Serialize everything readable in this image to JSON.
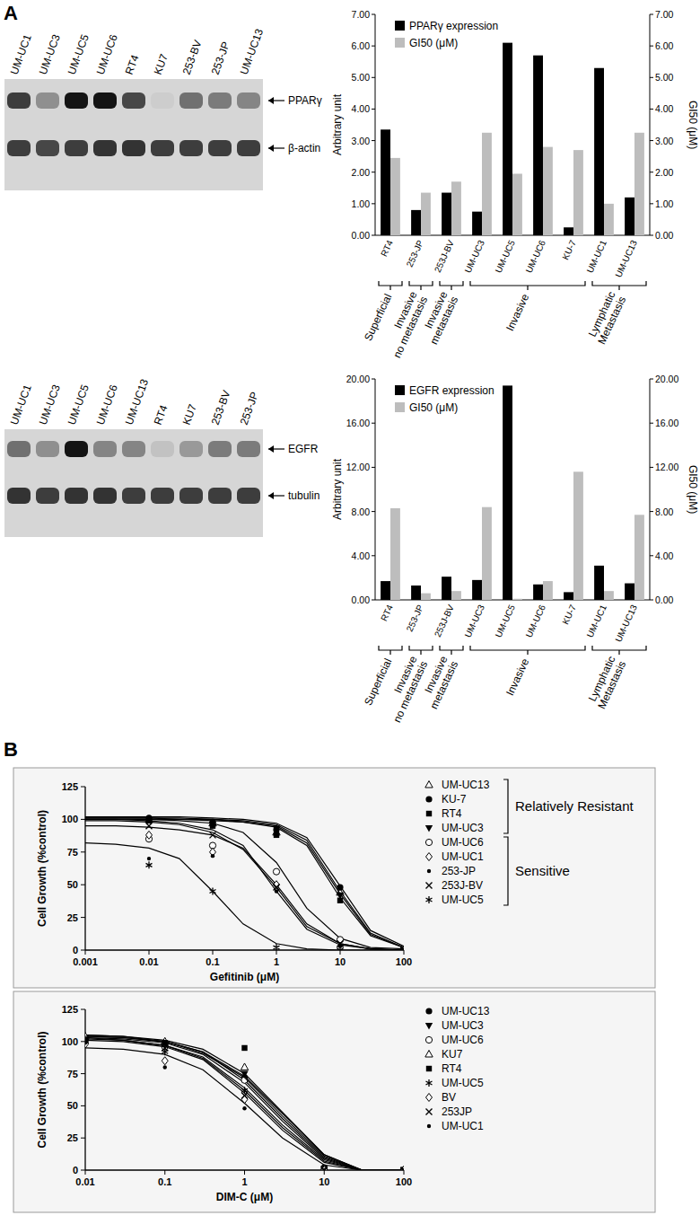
{
  "panel_labels": [
    "A",
    "B"
  ],
  "blots": [
    {
      "lanes": [
        "UM-UC1",
        "UM-UC3",
        "UM-UC5",
        "UM-UC6",
        "RT4",
        "KU7",
        "253-BV",
        "253-JP",
        "UM-UC13"
      ],
      "bands": [
        {
          "label": "PPARγ",
          "intensity": [
            0.8,
            0.4,
            1,
            1,
            0.75,
            0.1,
            0.55,
            0.5,
            0.45
          ]
        },
        {
          "label": "β-actin",
          "intensity": [
            0.8,
            0.75,
            0.8,
            0.85,
            0.85,
            0.8,
            0.8,
            0.8,
            0.8
          ]
        }
      ]
    },
    {
      "lanes": [
        "UM-UC1",
        "UM-UC3",
        "UM-UC5",
        "UM-UC6",
        "UM-UC13",
        "RT4",
        "KU7",
        "253-BV",
        "253-JP"
      ],
      "bands": [
        {
          "label": "EGFR",
          "intensity": [
            0.55,
            0.4,
            1,
            0.45,
            0.45,
            0.15,
            0.35,
            0.5,
            0.5
          ]
        },
        {
          "label": "tubulin",
          "intensity": [
            0.85,
            0.8,
            0.85,
            0.85,
            0.8,
            0.8,
            0.8,
            0.8,
            0.8
          ]
        }
      ]
    }
  ],
  "chart_data": [
    {
      "type": "bar",
      "categories": [
        "RT4",
        "253-JP",
        "253J-BV",
        "UM-UC3",
        "UM-UC5",
        "UM-UC6",
        "KU-7",
        "UM-UC1",
        "UM-UC13"
      ],
      "series": [
        {
          "name": "PPARγ expression",
          "color": "#000000",
          "values": [
            3.35,
            0.8,
            1.35,
            0.75,
            6.1,
            5.7,
            0.25,
            5.3,
            1.2
          ]
        },
        {
          "name": "GI50 (μM)",
          "color": "#bdbdbd",
          "axis": "y2",
          "values": [
            2.45,
            1.35,
            1.7,
            3.25,
            1.95,
            2.8,
            2.7,
            1.0,
            3.25
          ]
        }
      ],
      "ylim": [
        0,
        7
      ],
      "yticks": [
        {
          "value": 0,
          "label": "0.00"
        },
        {
          "value": 1,
          "label": "1.00"
        },
        {
          "value": 2,
          "label": "2.00"
        },
        {
          "value": 3,
          "label": "3.00"
        },
        {
          "value": 4,
          "label": "4.00"
        },
        {
          "value": 5,
          "label": "5.00"
        },
        {
          "value": 6,
          "label": "6.00"
        },
        {
          "value": 7,
          "label": "7.00"
        }
      ],
      "y2lim": [
        0,
        7
      ],
      "y2ticks": [
        {
          "value": 0,
          "label": "0.00"
        },
        {
          "value": 1,
          "label": "1.00"
        },
        {
          "value": 2,
          "label": "2.00"
        },
        {
          "value": 3,
          "label": "3.00"
        },
        {
          "value": 4,
          "label": "4.00"
        },
        {
          "value": 5,
          "label": "5.00"
        },
        {
          "value": 6,
          "label": "6.00"
        },
        {
          "value": 7,
          "label": "7.00"
        }
      ],
      "y_label": "Arbitrary unit",
      "y2_label": "GI50 (μM)",
      "legend": "top-left",
      "groups": [
        {
          "label": [
            "Superficial"
          ],
          "categories": [
            "RT4"
          ]
        },
        {
          "label": [
            "Invasive",
            "no metastasis"
          ],
          "categories": [
            "253-JP"
          ]
        },
        {
          "label": [
            "Invasive",
            "metastasis"
          ],
          "categories": [
            "253J-BV"
          ]
        },
        {
          "label": [
            "Invasive"
          ],
          "categories": [
            "UM-UC3",
            "UM-UC5",
            "UM-UC6",
            "KU-7"
          ]
        },
        {
          "label": [
            "Lymphatic",
            "Metastasis"
          ],
          "categories": [
            "UM-UC1",
            "UM-UC13"
          ]
        }
      ]
    },
    {
      "type": "bar",
      "categories": [
        "RT4",
        "253-JP",
        "253J-BV",
        "UM-UC3",
        "UM-UC5",
        "UM-UC6",
        "KU-7",
        "UM-UC1",
        "UM-UC13"
      ],
      "series": [
        {
          "name": "EGFR expression",
          "color": "#000000",
          "values": [
            1.7,
            1.3,
            2.1,
            1.8,
            19.4,
            1.4,
            0.7,
            3.1,
            1.5
          ]
        },
        {
          "name": "GI50 (μM)",
          "color": "#bdbdbd",
          "axis": "y2",
          "values": [
            8.3,
            0.6,
            0.8,
            8.4,
            0.1,
            1.7,
            11.6,
            0.8,
            7.7
          ]
        }
      ],
      "ylim": [
        0,
        20
      ],
      "yticks": [
        {
          "value": 0,
          "label": "0.00"
        },
        {
          "value": 4,
          "label": "4.00"
        },
        {
          "value": 8,
          "label": "8.00"
        },
        {
          "value": 12,
          "label": "12.00"
        },
        {
          "value": 16,
          "label": "16.00"
        },
        {
          "value": 20,
          "label": "20.00"
        }
      ],
      "y2lim": [
        0,
        20
      ],
      "y2ticks": [
        {
          "value": 0,
          "label": "0.00"
        },
        {
          "value": 4,
          "label": "4.00"
        },
        {
          "value": 8,
          "label": "8.00"
        },
        {
          "value": 12,
          "label": "12.00"
        },
        {
          "value": 16,
          "label": "16.00"
        },
        {
          "value": 20,
          "label": "20.00"
        }
      ],
      "y_label": "Arbitrary unit",
      "y2_label": "GI50 (μM)",
      "legend": "top-left",
      "groups": [
        {
          "label": [
            "Superficial"
          ],
          "categories": [
            "RT4"
          ]
        },
        {
          "label": [
            "Invasive",
            "no metastasis"
          ],
          "categories": [
            "253-JP"
          ]
        },
        {
          "label": [
            "Invasive",
            "metastasis"
          ],
          "categories": [
            "253J-BV"
          ]
        },
        {
          "label": [
            "Invasive"
          ],
          "categories": [
            "UM-UC3",
            "UM-UC5",
            "UM-UC6",
            "KU-7"
          ]
        },
        {
          "label": [
            "Lymphatic",
            "Metastasis"
          ],
          "categories": [
            "UM-UC1",
            "UM-UC13"
          ]
        }
      ]
    },
    {
      "type": "line",
      "log": "x",
      "x": [
        0.001,
        0.003,
        0.01,
        0.03,
        0.1,
        0.3,
        1,
        3,
        10,
        30,
        100
      ],
      "doses": [
        0.01,
        0.1,
        1,
        10,
        100
      ],
      "xlim": [
        0.001,
        100
      ],
      "xticks": [
        0.001,
        0.01,
        0.1,
        1,
        10,
        100
      ],
      "ylim": [
        0,
        125
      ],
      "yticks": [
        0,
        25,
        50,
        75,
        100,
        125
      ],
      "x_label": "Gefitinib (μM)",
      "y_label": "Cell Growth (%control)",
      "legend": "right",
      "groups": [
        {
          "label": "Relatively Resistant",
          "series": [
            "UM-UC13",
            "KU-7",
            "RT4",
            "UM-UC3"
          ]
        },
        {
          "label": "Sensitive",
          "series": [
            "UM-UC6",
            "UM-UC1",
            "253-JP",
            "253J-BV",
            "UM-UC5"
          ]
        }
      ],
      "series": [
        {
          "name": "UM-UC13",
          "color": "#000000",
          "marker": "triangle-open",
          "values": [
            101,
            101,
            101,
            101,
            100,
            99,
            96,
            84,
            45,
            13,
            2
          ],
          "points": [
            100,
            97,
            90,
            44,
            0
          ]
        },
        {
          "name": "KU-7",
          "color": "#000000",
          "marker": "circle",
          "values": [
            102,
            102,
            102,
            102,
            101,
            100,
            97,
            86,
            49,
            15,
            3
          ],
          "points": [
            101,
            98,
            92,
            48,
            0
          ]
        },
        {
          "name": "RT4",
          "color": "#000000",
          "marker": "square",
          "values": [
            100,
            100,
            100,
            100,
            99,
            98,
            94,
            80,
            40,
            11,
            2
          ],
          "points": [
            99,
            95,
            88,
            38,
            0
          ]
        },
        {
          "name": "UM-UC3",
          "color": "#000000",
          "marker": "triangle-down",
          "values": [
            101,
            101,
            101,
            100,
            100,
            98,
            95,
            82,
            43,
            12,
            2
          ],
          "points": [
            100,
            96,
            93,
            42,
            0
          ]
        },
        {
          "name": "UM-UC6",
          "color": "#000000",
          "marker": "circle-open",
          "values": [
            100,
            100,
            100,
            99,
            97,
            90,
            67,
            32,
            9,
            2,
            1
          ],
          "points": [
            85,
            80,
            60,
            8,
            0
          ]
        },
        {
          "name": "UM-UC1",
          "color": "#000000",
          "marker": "diamond-open",
          "values": [
            95,
            95,
            94,
            92,
            88,
            78,
            50,
            20,
            5,
            1,
            0
          ],
          "points": [
            88,
            75,
            50,
            2,
            0
          ]
        },
        {
          "name": "253-JP",
          "color": "#000000",
          "marker": "dot",
          "values": [
            100,
            100,
            99,
            97,
            92,
            80,
            45,
            16,
            4,
            1,
            0
          ],
          "points": [
            70,
            72,
            45,
            3,
            0
          ]
        },
        {
          "name": "253J-BV",
          "color": "#000000",
          "marker": "x",
          "values": [
            99,
            99,
            98,
            96,
            90,
            77,
            48,
            18,
            5,
            1,
            0
          ],
          "points": [
            95,
            88,
            48,
            5,
            0
          ]
        },
        {
          "name": "UM-UC5",
          "color": "#000000",
          "marker": "asterisk",
          "values": [
            82,
            81,
            78,
            70,
            45,
            20,
            5,
            1,
            0,
            0,
            0
          ],
          "points": [
            65,
            45,
            2,
            0,
            0
          ]
        }
      ]
    },
    {
      "type": "line",
      "log": "x",
      "x": [
        0.01,
        0.03,
        0.1,
        0.3,
        1,
        3,
        10,
        30,
        100
      ],
      "doses": [
        0.01,
        0.1,
        1,
        10,
        100
      ],
      "xlim": [
        0.01,
        100
      ],
      "xticks": [
        0.01,
        0.1,
        1,
        10,
        100
      ],
      "ylim": [
        0,
        125
      ],
      "yticks": [
        0,
        25,
        50,
        75,
        100,
        125
      ],
      "x_label": "DIM-C (μM)",
      "y_label": "Cell Growth (%control)",
      "legend": "right",
      "series": [
        {
          "name": "UM-UC13",
          "color": "#000000",
          "marker": "circle",
          "values": [
            105,
            104,
            101,
            94,
            75,
            45,
            12,
            0,
            0
          ],
          "points": [
            100,
            98,
            72,
            2,
            0
          ]
        },
        {
          "name": "UM-UC3",
          "color": "#000000",
          "marker": "triangle-down",
          "values": [
            104,
            103,
            100,
            92,
            70,
            40,
            10,
            0,
            0
          ],
          "points": [
            103,
            97,
            75,
            1,
            0
          ]
        },
        {
          "name": "UM-UC6",
          "color": "#000000",
          "marker": "circle-open",
          "values": [
            103,
            102,
            99,
            90,
            68,
            38,
            9,
            0,
            0
          ],
          "points": [
            102,
            96,
            70,
            0,
            0
          ]
        },
        {
          "name": "KU7",
          "color": "#000000",
          "marker": "triangle-open",
          "values": [
            105,
            104,
            100,
            91,
            72,
            42,
            11,
            0,
            0
          ],
          "points": [
            104,
            100,
            80,
            1,
            0
          ]
        },
        {
          "name": "RT4",
          "color": "#000000",
          "marker": "square",
          "values": [
            104,
            103,
            100,
            92,
            73,
            44,
            12,
            0,
            0
          ],
          "points": [
            101,
            99,
            95,
            0,
            0
          ]
        },
        {
          "name": "UM-UC5",
          "color": "#000000",
          "marker": "asterisk",
          "values": [
            103,
            101,
            97,
            87,
            62,
            33,
            7,
            0,
            0
          ],
          "points": [
            100,
            92,
            62,
            0,
            0
          ]
        },
        {
          "name": "BV",
          "color": "#000000",
          "marker": "diamond-open",
          "values": [
            102,
            101,
            97,
            88,
            64,
            35,
            8,
            0,
            0
          ],
          "points": [
            98,
            85,
            55,
            0,
            0
          ]
        },
        {
          "name": "253JP",
          "color": "#000000",
          "marker": "x",
          "values": [
            101,
            100,
            96,
            86,
            60,
            31,
            6,
            0,
            0
          ],
          "points": [
            101,
            95,
            58,
            0,
            0
          ]
        },
        {
          "name": "UM-UC1",
          "color": "#000000",
          "marker": "dot",
          "values": [
            95,
            94,
            90,
            78,
            52,
            25,
            4,
            0,
            0
          ],
          "points": [
            99,
            80,
            48,
            0,
            0
          ]
        }
      ]
    }
  ]
}
